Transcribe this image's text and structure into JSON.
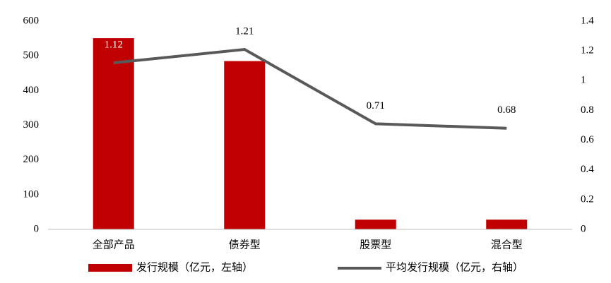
{
  "chart_data": {
    "type": "bar-line",
    "categories": [
      "全部产品",
      "债券型",
      "股票型",
      "混合型"
    ],
    "series": [
      {
        "name": "发行规模（亿元，左轴）",
        "type": "bar",
        "color": "#c00000",
        "values": [
          551,
          485,
          28,
          28
        ]
      },
      {
        "name": "平均发行规模（亿元，右轴）",
        "type": "line",
        "axis": "y2",
        "color": "#595959",
        "values": [
          1.12,
          1.21,
          0.71,
          0.68
        ],
        "data_labels": true
      }
    ],
    "ylim": [
      0,
      600
    ],
    "yticks": [
      0,
      100,
      200,
      300,
      400,
      500,
      600
    ],
    "y2lim": [
      0,
      1.4
    ],
    "y2ticks": [
      0,
      0.2,
      0.4,
      0.6,
      0.8,
      1,
      1.2,
      1.4
    ],
    "grid": false,
    "legend": "bottom"
  }
}
